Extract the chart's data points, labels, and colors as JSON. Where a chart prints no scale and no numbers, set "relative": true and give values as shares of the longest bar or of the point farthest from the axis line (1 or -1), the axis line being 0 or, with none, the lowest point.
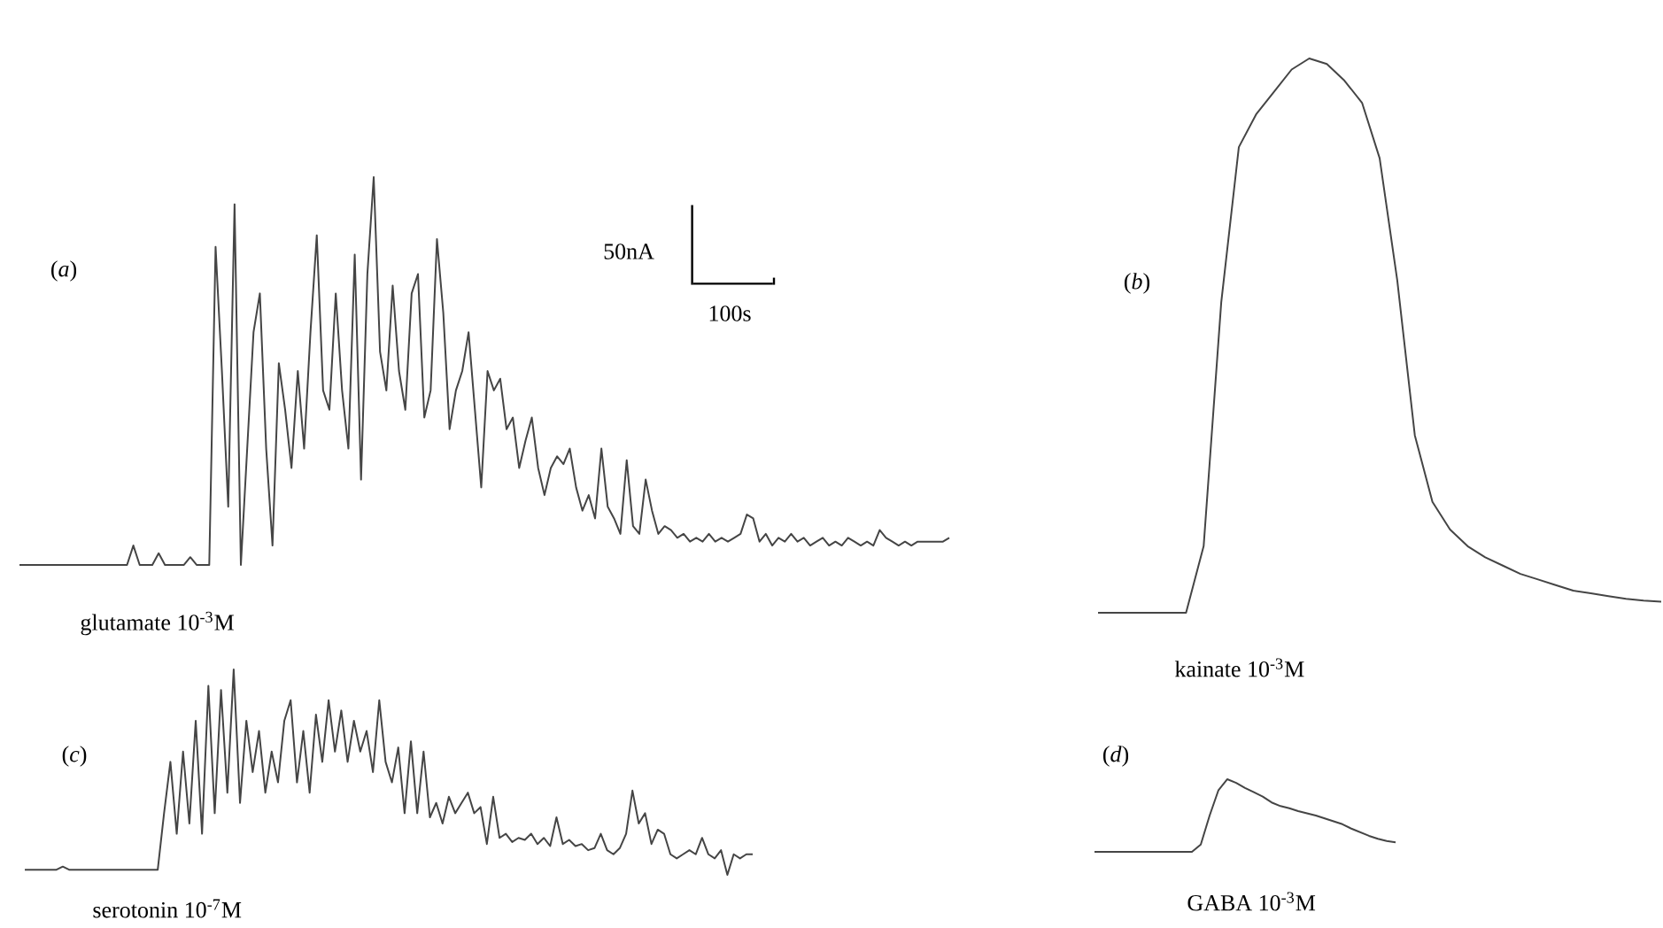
{
  "chart_data": [
    {
      "type": "line",
      "title": "(*a*)",
      "annotations": [
        "glutamate 10$^{-3}$M",
        "50nA",
        "100s"
      ],
      "relative": true,
      "categories": [
        null,
        null,
        null,
        null,
        null,
        null,
        null,
        null,
        null,
        null,
        null,
        null,
        null,
        null,
        null,
        null,
        null,
        null,
        null,
        null,
        null,
        null,
        null,
        null,
        null,
        null,
        null,
        null,
        null,
        null,
        null,
        null,
        null,
        null,
        null,
        null,
        null,
        null,
        null,
        null,
        null,
        null,
        null,
        null,
        null,
        null,
        null,
        null,
        null,
        null,
        null,
        null,
        null,
        null,
        null,
        null,
        null,
        null,
        null,
        null,
        null,
        null,
        null,
        null,
        null,
        null,
        null,
        null,
        null,
        null,
        null,
        null,
        null,
        null,
        null,
        null,
        null,
        null,
        null,
        null,
        null,
        null,
        null,
        null,
        null,
        null,
        null,
        null,
        null,
        null,
        null,
        null,
        null,
        null,
        null,
        null,
        null,
        null,
        null,
        null,
        null,
        null,
        null,
        null,
        null,
        null,
        null,
        null,
        null,
        null,
        null,
        null,
        null,
        null,
        null,
        null,
        null,
        null,
        null,
        null,
        null,
        null,
        null,
        null,
        null,
        null,
        null,
        null,
        null,
        null,
        null,
        null,
        null,
        null,
        null,
        null,
        null,
        null,
        null,
        null,
        null,
        null,
        null,
        null,
        null,
        null,
        null,
        null
      ],
      "series": [
        {
          "color": "#454545",
          "values": [
            0,
            0,
            0,
            0,
            0,
            0,
            0,
            0,
            0,
            0,
            0,
            0,
            0,
            0,
            0,
            0,
            0,
            0,
            0.05,
            0,
            0,
            0,
            0.03,
            0,
            0,
            0,
            0,
            0.02,
            0,
            0,
            0,
            0.82,
            0.5,
            0.15,
            0.93,
            0,
            0.3,
            0.6,
            0.7,
            0.3,
            0.05,
            0.52,
            0.4,
            0.25,
            0.5,
            0.3,
            0.6,
            0.85,
            0.45,
            0.4,
            0.7,
            0.45,
            0.3,
            0.8,
            0.22,
            0.75,
            1.0,
            0.55,
            0.45,
            0.72,
            0.5,
            0.4,
            0.7,
            0.75,
            0.38,
            0.45,
            0.84,
            0.65,
            0.35,
            0.45,
            0.5,
            0.6,
            0.4,
            0.2,
            0.5,
            0.45,
            0.48,
            0.35,
            0.38,
            0.25,
            0.32,
            0.38,
            0.25,
            0.18,
            0.25,
            0.28,
            0.26,
            0.3,
            0.2,
            0.14,
            0.18,
            0.12,
            0.3,
            0.15,
            0.12,
            0.08,
            0.27,
            0.1,
            0.08,
            0.22,
            0.14,
            0.08,
            0.1,
            0.09,
            0.07,
            0.08,
            0.06,
            0.07,
            0.06,
            0.08,
            0.06,
            0.07,
            0.06,
            0.07,
            0.08,
            0.13,
            0.12,
            0.06,
            0.08,
            0.05,
            0.07,
            0.06,
            0.08,
            0.06,
            0.07,
            0.05,
            0.06,
            0.07,
            0.05,
            0.06,
            0.05,
            0.07,
            0.06,
            0.05,
            0.06,
            0.05,
            0.09,
            0.07,
            0.06,
            0.05,
            0.06,
            0.05,
            0.06,
            0.06,
            0.06,
            0.06,
            0.06,
            0.07
          ]
        }
      ]
    },
    {
      "type": "line",
      "title": "(*b*)",
      "annotations": [
        "kainate 10$^{-3}$M"
      ],
      "relative": true,
      "categories": [
        null,
        null,
        null,
        null,
        null,
        null,
        null,
        null,
        null,
        null,
        null,
        null,
        null,
        null,
        null,
        null,
        null,
        null,
        null,
        null,
        null,
        null,
        null,
        null,
        null,
        null,
        null,
        null,
        null,
        null,
        null,
        null,
        null
      ],
      "series": [
        {
          "color": "#454545",
          "values": [
            0,
            0,
            0,
            0,
            0,
            0,
            0.12,
            0.56,
            0.84,
            0.9,
            0.94,
            0.98,
            1.0,
            0.99,
            0.96,
            0.92,
            0.82,
            0.6,
            0.32,
            0.2,
            0.15,
            0.12,
            0.1,
            0.085,
            0.07,
            0.06,
            0.05,
            0.04,
            0.035,
            0.03,
            0.025,
            0.022,
            0.02
          ]
        }
      ]
    },
    {
      "type": "line",
      "title": "(*c*)",
      "annotations": [
        "serotonin 10$^{-7}$M"
      ],
      "relative": true,
      "categories": [
        null,
        null,
        null,
        null,
        null,
        null,
        null,
        null,
        null,
        null,
        null,
        null,
        null,
        null,
        null,
        null,
        null,
        null,
        null,
        null,
        null,
        null,
        null,
        null,
        null,
        null,
        null,
        null,
        null,
        null,
        null,
        null,
        null,
        null,
        null,
        null,
        null,
        null,
        null,
        null,
        null,
        null,
        null,
        null,
        null,
        null,
        null,
        null,
        null,
        null,
        null,
        null,
        null,
        null,
        null,
        null,
        null,
        null,
        null,
        null,
        null,
        null,
        null,
        null,
        null,
        null,
        null,
        null,
        null,
        null,
        null,
        null,
        null,
        null,
        null,
        null,
        null,
        null,
        null,
        null,
        null,
        null,
        null,
        null,
        null,
        null,
        null,
        null,
        null,
        null,
        null,
        null,
        null,
        null,
        null,
        null,
        null,
        null,
        null,
        null,
        null,
        null,
        null,
        null,
        null,
        null,
        null,
        null,
        null,
        null,
        null,
        null,
        null,
        null,
        null,
        null
      ],
      "series": [
        {
          "color": "#454545",
          "values": [
            0.025,
            0.025,
            0.025,
            0.025,
            0.025,
            0.025,
            0.04,
            0.025,
            0.025,
            0.025,
            0.025,
            0.025,
            0.025,
            0.025,
            0.025,
            0.025,
            0.025,
            0.025,
            0.025,
            0.025,
            0.025,
            0.025,
            0.3,
            0.55,
            0.2,
            0.6,
            0.25,
            0.75,
            0.2,
            0.92,
            0.3,
            0.9,
            0.4,
            1.0,
            0.35,
            0.75,
            0.5,
            0.7,
            0.4,
            0.6,
            0.45,
            0.75,
            0.85,
            0.45,
            0.7,
            0.4,
            0.78,
            0.55,
            0.85,
            0.6,
            0.8,
            0.55,
            0.75,
            0.6,
            0.7,
            0.5,
            0.85,
            0.55,
            0.45,
            0.62,
            0.3,
            0.65,
            0.3,
            0.6,
            0.28,
            0.35,
            0.25,
            0.38,
            0.3,
            0.35,
            0.4,
            0.3,
            0.33,
            0.15,
            0.38,
            0.18,
            0.2,
            0.16,
            0.18,
            0.17,
            0.2,
            0.15,
            0.18,
            0.14,
            0.28,
            0.15,
            0.17,
            0.14,
            0.15,
            0.12,
            0.13,
            0.2,
            0.12,
            0.1,
            0.13,
            0.2,
            0.41,
            0.25,
            0.3,
            0.15,
            0.22,
            0.2,
            0.1,
            0.08,
            0.1,
            0.12,
            0.1,
            0.18,
            0.1,
            0.08,
            0.12,
            0,
            0.1,
            0.08,
            0.1,
            0.1
          ]
        }
      ]
    },
    {
      "type": "line",
      "title": "(*d*)",
      "annotations": [
        "GABA 10$^{-3}$M"
      ],
      "relative": true,
      "categories": [
        null,
        null,
        null,
        null,
        null,
        null,
        null,
        null,
        null,
        null,
        null,
        null,
        null,
        null,
        null,
        null,
        null,
        null,
        null,
        null,
        null,
        null,
        null,
        null,
        null,
        null,
        null,
        null,
        null,
        null,
        null,
        null,
        null,
        null,
        null
      ],
      "series": [
        {
          "color": "#454545",
          "values": [
            0,
            0,
            0,
            0,
            0,
            0,
            0,
            0,
            0,
            0,
            0,
            0,
            0.1,
            0.5,
            0.85,
            1.0,
            0.95,
            0.88,
            0.82,
            0.76,
            0.68,
            0.63,
            0.6,
            0.56,
            0.53,
            0.5,
            0.46,
            0.42,
            0.38,
            0.32,
            0.27,
            0.22,
            0.18,
            0.15,
            0.13
          ]
        }
      ]
    }
  ]
}
